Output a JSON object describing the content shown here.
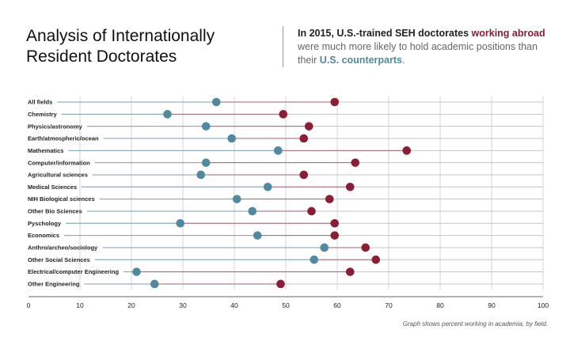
{
  "header": {
    "title_line1": "Analysis of Internationally",
    "title_line2": "Resident Doctorates",
    "subtitle_part1": "In 2015, U.S.-trained SEH doctorates ",
    "subtitle_abroad": "working abroad",
    "subtitle_part2": " were much more likely to hold academic positions than their ",
    "subtitle_us": "U.S. counterparts",
    "subtitle_end": "."
  },
  "footnote": "Graph shows percent working in academia, by field.",
  "colors": {
    "us": "#4f8aa0",
    "abroad": "#8b1e34",
    "grid": "#d6d6d6"
  },
  "chart_data": {
    "type": "scatter",
    "subtype": "dumbbell",
    "title": "",
    "xlabel": "",
    "ylabel": "",
    "xlim": [
      0,
      100
    ],
    "x_ticks": [
      0,
      10,
      20,
      30,
      40,
      50,
      60,
      70,
      80,
      90,
      100
    ],
    "grid": true,
    "categories": [
      "All fields",
      "Chemistry",
      "Physics/astronomy",
      "Earth/atmospheric/ocean",
      "Mathematics",
      "Computer/information",
      "Agricultural sciences",
      "Medical Sciences",
      "NIH Biological sciences",
      "Other Bio Sciences",
      "Pyschology",
      "Economics",
      "Anthro/archeo/sociology",
      "Other Social Sciences",
      "Electrical/computer Engineering",
      "Other Engineering"
    ],
    "series": [
      {
        "key": "us",
        "values": [
          36.5,
          27,
          34.5,
          39.5,
          48.5,
          34.5,
          33.5,
          46.5,
          40.5,
          43.5,
          29.5,
          44.5,
          57.5,
          55.5,
          21,
          24.5
        ]
      },
      {
        "key": "abroad",
        "values": [
          59.5,
          49.5,
          54.5,
          53.5,
          73.5,
          63.5,
          53.5,
          62.5,
          58.5,
          55,
          59.5,
          59.5,
          65.5,
          67.5,
          62.5,
          49
        ]
      }
    ]
  }
}
